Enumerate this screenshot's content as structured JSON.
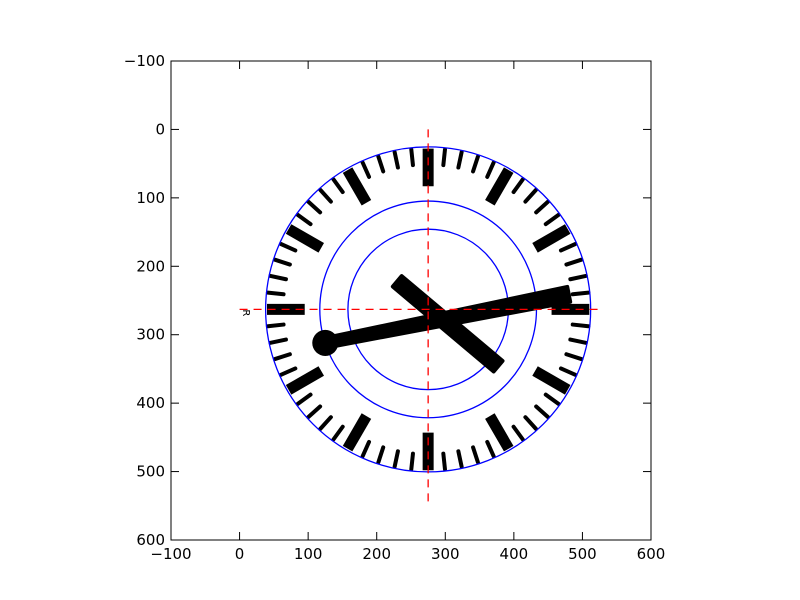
{
  "chart_data": {
    "type": "scatter",
    "title": "",
    "xlabel": "",
    "ylabel": "",
    "xlim": [
      -100,
      600
    ],
    "ylim": [
      600,
      -100
    ],
    "y_inverted": true,
    "aspect": "equal",
    "grid": false,
    "x_ticks": [
      -100,
      0,
      100,
      200,
      300,
      400,
      500,
      600
    ],
    "y_ticks": [
      -100,
      0,
      100,
      200,
      300,
      400,
      500,
      600
    ],
    "x_tick_labels": [
      "−100",
      "0",
      "100",
      "200",
      "300",
      "400",
      "500",
      "600"
    ],
    "y_tick_labels": [
      "−100",
      "0",
      "100",
      "200",
      "300",
      "400",
      "500",
      "600"
    ],
    "colors": {
      "circles": "#0000ff",
      "crosshair": "#ff0000",
      "shapes": "#000000"
    },
    "circle_center": [
      275,
      263
    ],
    "circles": [
      {
        "name": "",
        "radius": 237
      },
      {
        "name": "",
        "radius": 158
      },
      {
        "name": "",
        "radius": 117
      }
    ],
    "crosshair": {
      "vertical_x": 275,
      "vertical_y_range": [
        0,
        545
      ],
      "horizontal_y": 263,
      "horizontal_x_range": [
        0,
        527
      ]
    },
    "dial": {
      "outer_radius": 237,
      "hour_mark_inner_radius": 180,
      "minute_mark_inner_radius": 212
    },
    "hands": [
      {
        "name": "",
        "from": [
          125,
          312
        ],
        "to": [
          480,
          241
        ],
        "width_start": 14,
        "width_end": 22,
        "end_circle_radius": 19
      },
      {
        "name": "",
        "from": [
          230,
          222
        ],
        "to": [
          377,
          346
        ],
        "width_start": 20,
        "width_end": 20
      }
    ],
    "stray_text": {
      "x": 5,
      "y": 268,
      "text": "R"
    }
  }
}
